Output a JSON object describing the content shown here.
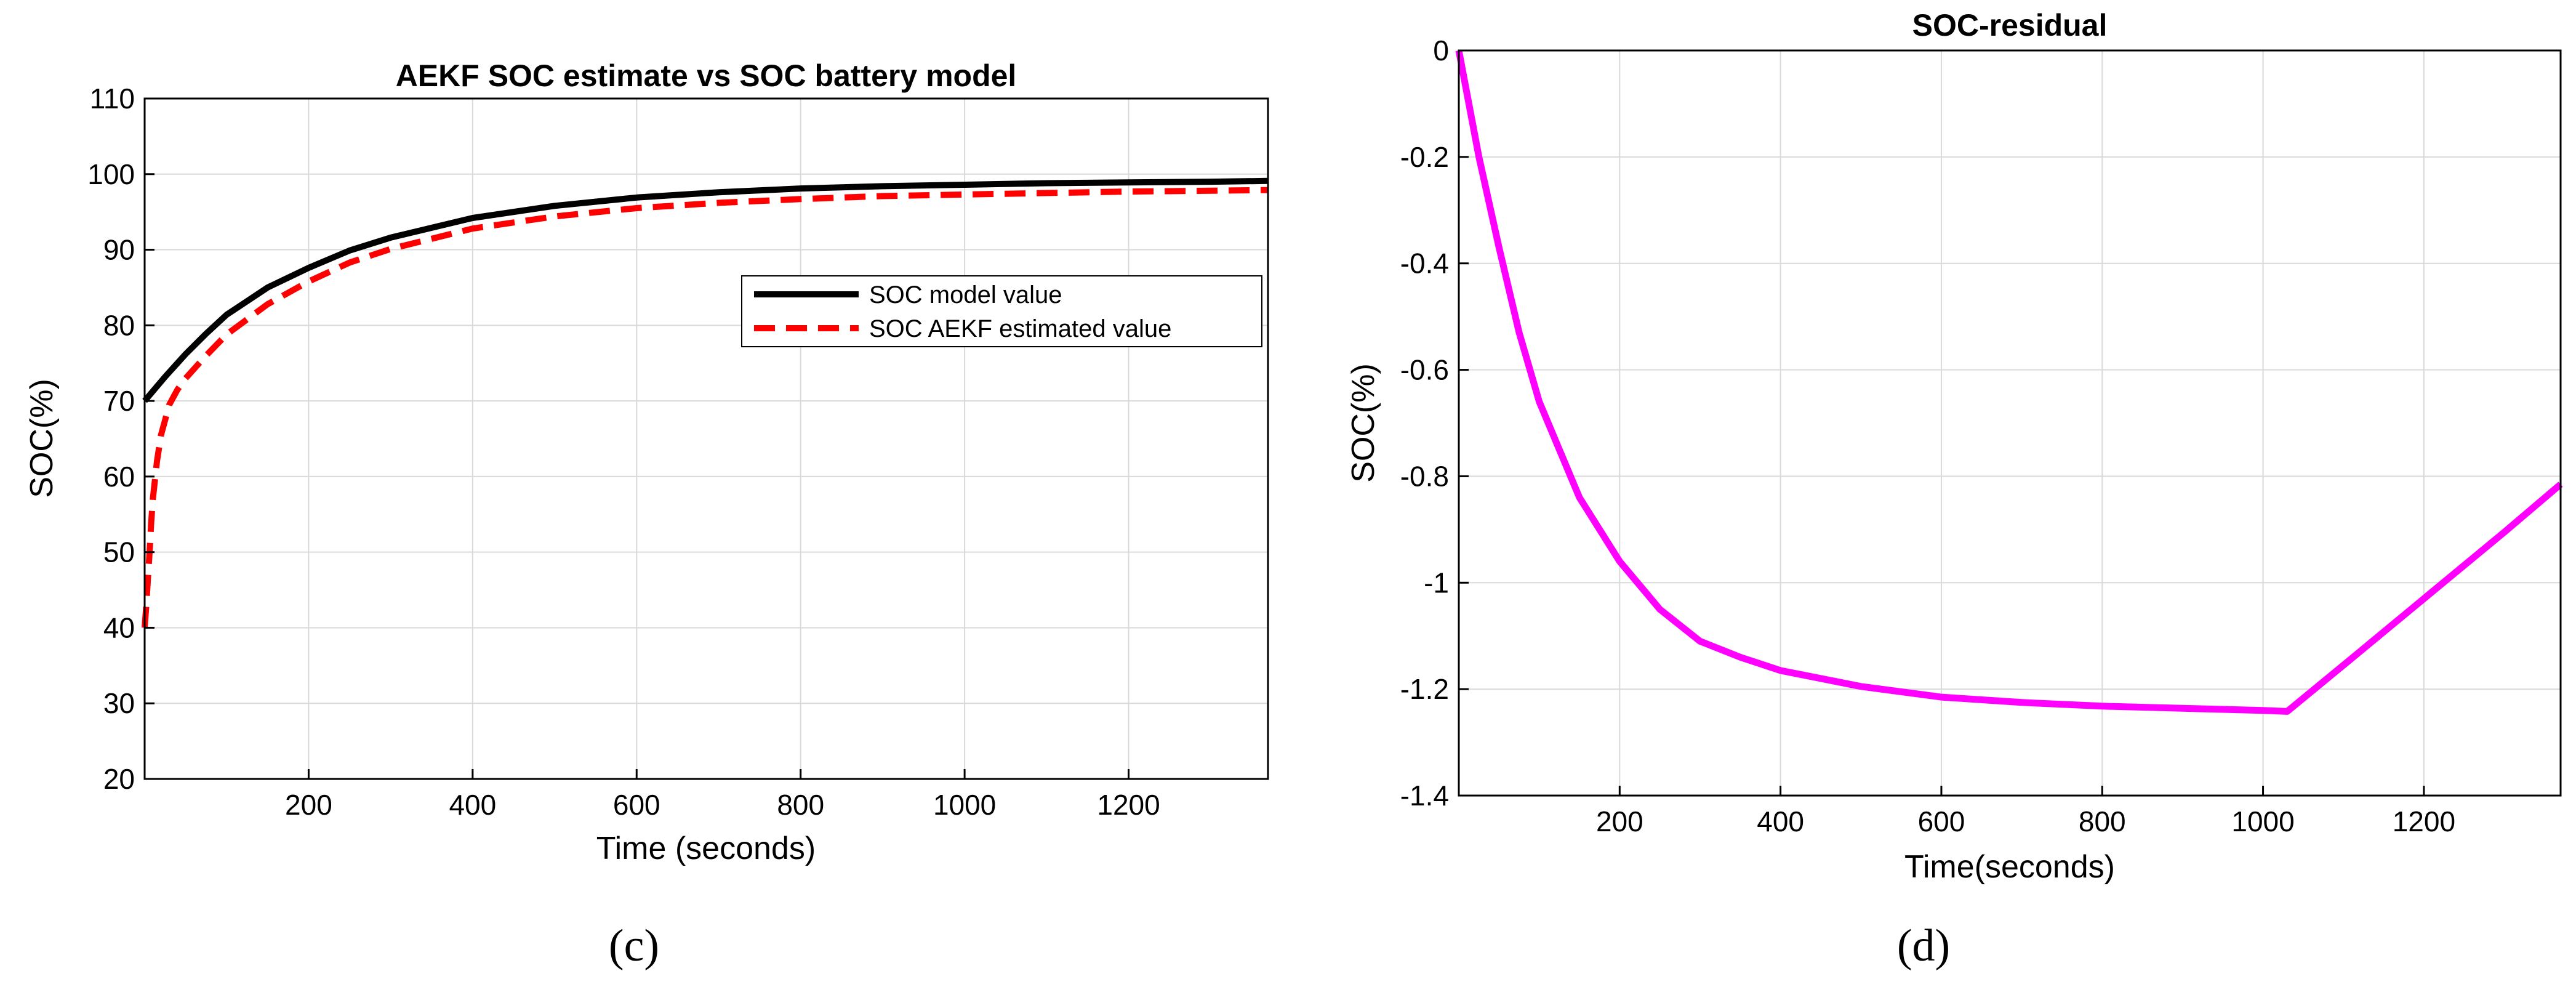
{
  "chart_data": [
    {
      "type": "line",
      "panel": "(c)",
      "title": "AEKF SOC estimate vs SOC battery model",
      "xlabel": "Time (seconds)",
      "ylabel": "SOC(%)",
      "xlim": [
        0,
        1370
      ],
      "ylim": [
        20,
        110
      ],
      "xticks": [
        200,
        400,
        600,
        800,
        1000,
        1200
      ],
      "yticks": [
        20,
        30,
        40,
        50,
        60,
        70,
        80,
        90,
        100,
        110
      ],
      "grid": true,
      "legend_position": "center-right",
      "series": [
        {
          "name": "SOC model value",
          "color": "#000000",
          "style": "solid",
          "x": [
            0,
            25,
            50,
            75,
            100,
            150,
            200,
            250,
            300,
            400,
            500,
            600,
            700,
            800,
            900,
            1000,
            1100,
            1200,
            1300,
            1370
          ],
          "y": [
            70.0,
            73.2,
            76.2,
            78.9,
            81.4,
            85.0,
            87.6,
            89.9,
            91.6,
            94.2,
            95.8,
            96.9,
            97.6,
            98.1,
            98.4,
            98.6,
            98.8,
            98.9,
            99.0,
            99.1
          ]
        },
        {
          "name": "SOC AEKF estimated value",
          "color": "#ff0000",
          "style": "dashed",
          "x": [
            0,
            2,
            4,
            6,
            8,
            10,
            15,
            20,
            30,
            40,
            50,
            75,
            100,
            150,
            200,
            250,
            300,
            400,
            500,
            600,
            700,
            800,
            900,
            1000,
            1100,
            1200,
            1300,
            1370
          ],
          "y": [
            40.0,
            43.0,
            46.5,
            50.0,
            54.0,
            57.0,
            62.0,
            65.5,
            69.5,
            71.5,
            73.0,
            76.0,
            78.8,
            82.8,
            85.8,
            88.3,
            90.1,
            92.8,
            94.4,
            95.5,
            96.2,
            96.7,
            97.1,
            97.3,
            97.5,
            97.7,
            97.8,
            97.9
          ]
        }
      ]
    },
    {
      "type": "line",
      "panel": "(d)",
      "title": "SOC-residual",
      "xlabel": "Time(seconds)",
      "ylabel": "SOC(%)",
      "xlim": [
        0,
        1370
      ],
      "ylim": [
        -1.4,
        0
      ],
      "xticks": [
        200,
        400,
        600,
        800,
        1000,
        1200
      ],
      "yticks": [
        -1.4,
        -1.2,
        -1,
        -0.8,
        -0.6,
        -0.4,
        -0.2,
        0
      ],
      "grid": true,
      "series": [
        {
          "name": "SOC-residual",
          "color": "#ff00ff",
          "style": "solid",
          "x": [
            0,
            25,
            50,
            75,
            100,
            150,
            200,
            250,
            300,
            350,
            400,
            500,
            600,
            700,
            800,
            900,
            1000,
            1030,
            1100,
            1200,
            1300,
            1370
          ],
          "y": [
            0.0,
            -0.2,
            -0.37,
            -0.53,
            -0.66,
            -0.84,
            -0.96,
            -1.05,
            -1.11,
            -1.14,
            -1.165,
            -1.195,
            -1.215,
            -1.225,
            -1.232,
            -1.236,
            -1.24,
            -1.242,
            -1.155,
            -1.03,
            -0.905,
            -0.815
          ]
        }
      ]
    }
  ]
}
